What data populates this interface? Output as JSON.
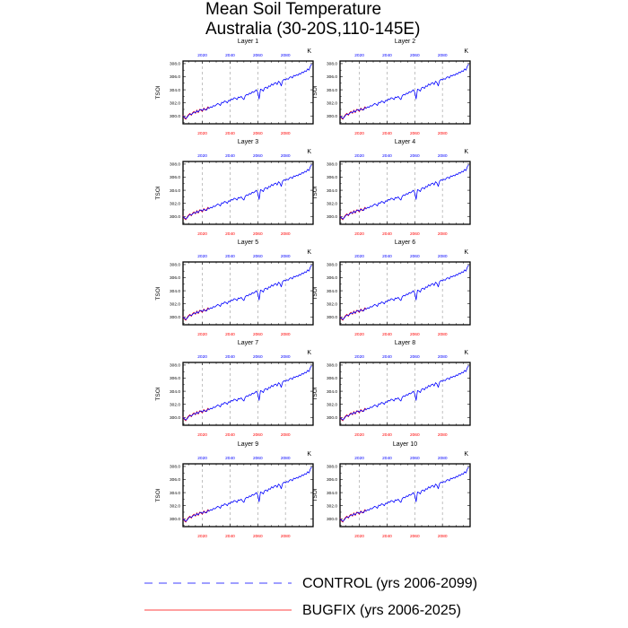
{
  "title": {
    "line1": "Mean Soil Temperature",
    "line2": "Australia (30-20S,110-145E)"
  },
  "legend": [
    {
      "label": "CONTROL (yrs 2006-2099)",
      "color": "#0000ff",
      "dash": true
    },
    {
      "label": "BUGFIX (yrs 2006-2025)",
      "color": "#ff0000",
      "dash": false
    }
  ],
  "chart_data": {
    "type": "line",
    "units": "K",
    "ylabel": "TSOI",
    "ylim": [
      298.8,
      308.4
    ],
    "yticks": [
      300,
      302,
      304,
      306,
      308
    ],
    "ytick_labels": [
      "300.0",
      "302.0",
      "304.0",
      "306.0",
      "308.0"
    ],
    "xlim": [
      2006,
      2100
    ],
    "xticks": [
      2020,
      2040,
      2060,
      2080
    ],
    "xtick_labels": [
      "2020",
      "2040",
      "2060",
      "2080"
    ],
    "panels": [
      "Layer 1",
      "Layer 2",
      "Layer 3",
      "Layer 4",
      "Layer 5",
      "Layer 6",
      "Layer 7",
      "Layer 8",
      "Layer 9",
      "Layer 10"
    ],
    "series": [
      {
        "name": "CONTROL",
        "color": "#0000ff",
        "x": [
          2006,
          2007,
          2008,
          2009,
          2010,
          2011,
          2012,
          2013,
          2014,
          2015,
          2016,
          2017,
          2018,
          2019,
          2020,
          2021,
          2022,
          2023,
          2024,
          2025,
          2026,
          2027,
          2028,
          2029,
          2030,
          2031,
          2032,
          2033,
          2034,
          2035,
          2036,
          2037,
          2038,
          2039,
          2040,
          2041,
          2042,
          2043,
          2044,
          2045,
          2046,
          2047,
          2048,
          2049,
          2050,
          2051,
          2052,
          2053,
          2054,
          2055,
          2056,
          2057,
          2058,
          2059,
          2060,
          2061,
          2062,
          2063,
          2064,
          2065,
          2066,
          2067,
          2068,
          2069,
          2070,
          2071,
          2072,
          2073,
          2074,
          2075,
          2076,
          2077,
          2078,
          2079,
          2080,
          2081,
          2082,
          2083,
          2084,
          2085,
          2086,
          2087,
          2088,
          2089,
          2090,
          2091,
          2092,
          2093,
          2094,
          2095,
          2096,
          2097,
          2098,
          2099
        ],
        "values": [
          300.0,
          299.8,
          299.6,
          299.8,
          300.1,
          300.3,
          300.2,
          300.4,
          300.6,
          300.5,
          300.8,
          300.6,
          300.9,
          301.0,
          300.8,
          301.1,
          301.0,
          300.9,
          301.3,
          301.2,
          301.4,
          301.3,
          301.6,
          301.5,
          301.7,
          301.9,
          301.8,
          301.6,
          302.1,
          302.0,
          302.3,
          302.2,
          302.0,
          302.4,
          302.3,
          302.6,
          302.5,
          302.8,
          302.7,
          302.5,
          302.9,
          302.8,
          303.0,
          302.7,
          302.5,
          303.1,
          303.3,
          303.2,
          303.5,
          303.4,
          303.7,
          303.6,
          303.8,
          304.0,
          303.6,
          302.6,
          304.1,
          304.0,
          303.8,
          304.3,
          304.4,
          304.2,
          304.6,
          304.5,
          304.9,
          304.7,
          305.0,
          305.1,
          304.8,
          305.3,
          305.1,
          304.6,
          305.4,
          305.6,
          305.5,
          305.7,
          305.6,
          305.9,
          306.0,
          305.8,
          306.2,
          306.1,
          306.3,
          306.2,
          306.5,
          306.4,
          306.7,
          306.6,
          306.9,
          306.8,
          307.2,
          307.0,
          307.6,
          307.9
        ]
      },
      {
        "name": "BUGFIX",
        "color": "#ff0000",
        "x": [
          2006,
          2007,
          2008,
          2009,
          2010,
          2011,
          2012,
          2013,
          2014,
          2015,
          2016,
          2017,
          2018,
          2019,
          2020,
          2021,
          2022,
          2023,
          2024,
          2025
        ],
        "values": [
          300.1,
          299.7,
          299.5,
          299.9,
          300.2,
          300.4,
          300.1,
          300.5,
          300.7,
          300.4,
          300.9,
          300.5,
          301.0,
          300.9,
          300.7,
          301.2,
          300.9,
          301.0,
          301.4,
          301.1
        ]
      }
    ]
  }
}
